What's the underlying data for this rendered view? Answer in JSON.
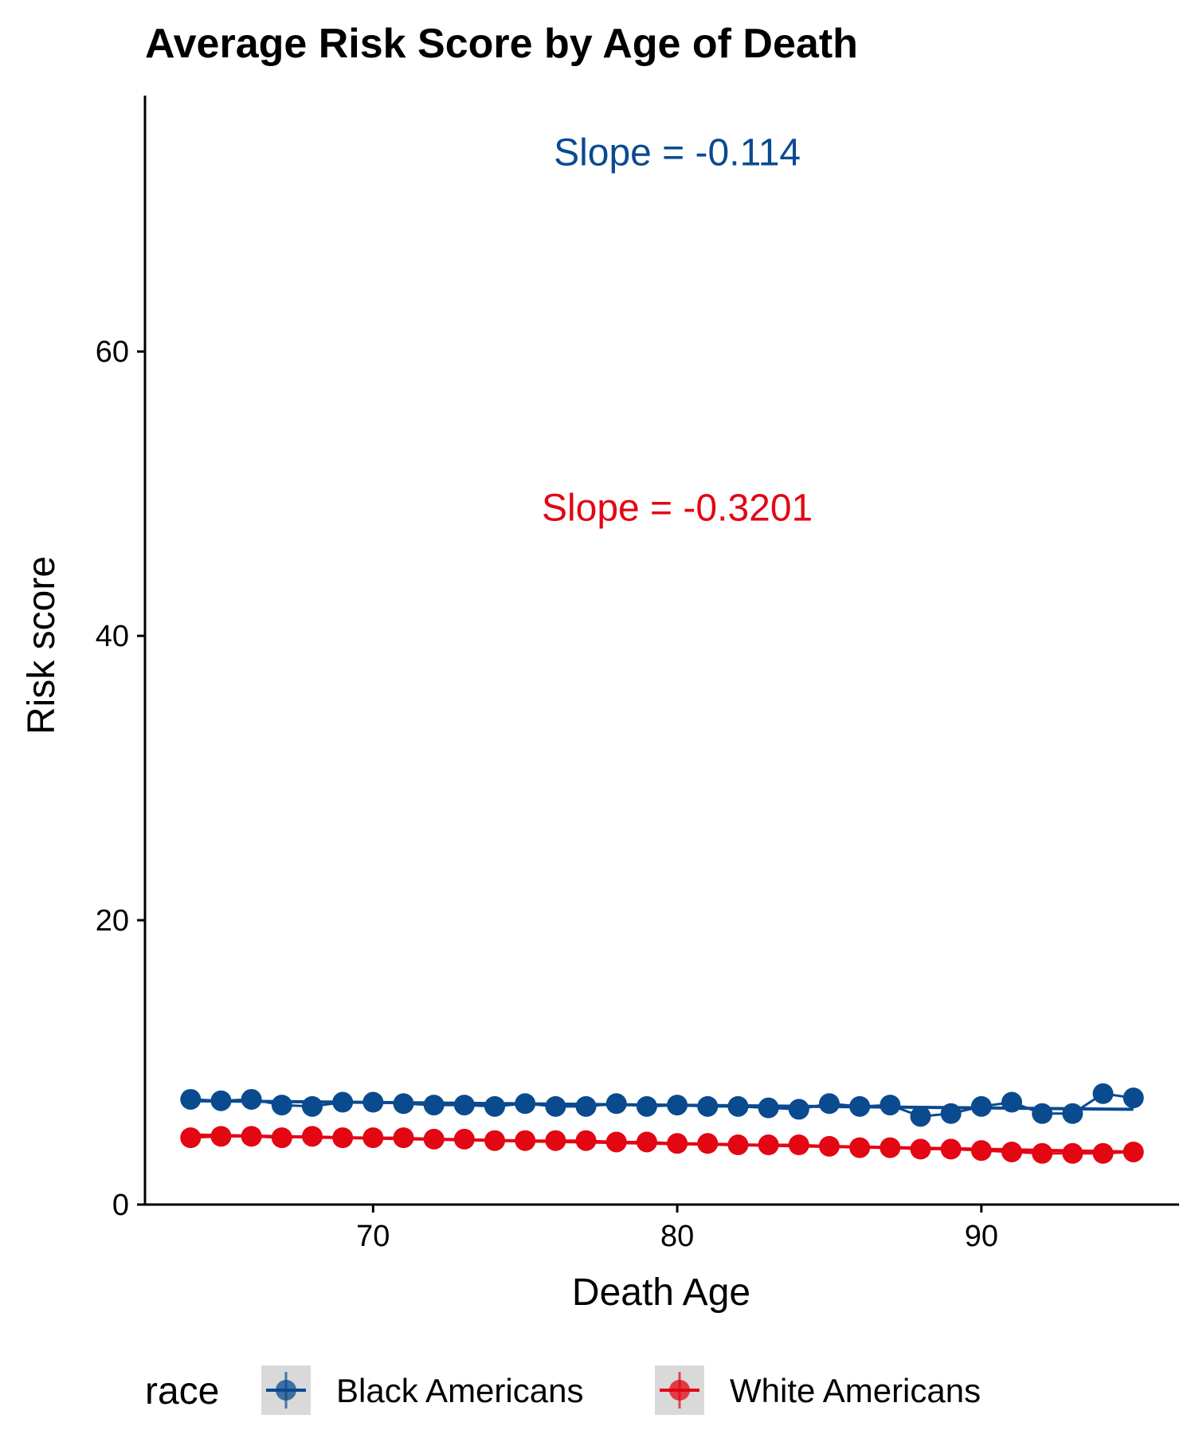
{
  "chart_data": {
    "type": "line",
    "title": "Average Risk Score by Age of Death",
    "xlabel": "Death Age",
    "ylabel": "Risk score",
    "xlim": [
      62.5,
      96.5
    ],
    "ylim": [
      0,
      78
    ],
    "xticks": [
      70,
      80,
      90
    ],
    "yticks": [
      0,
      20,
      40,
      60
    ],
    "grid": false,
    "legend": {
      "title": "race",
      "position": "bottom"
    },
    "x": [
      64,
      65,
      66,
      67,
      68,
      69,
      70,
      71,
      72,
      73,
      74,
      75,
      76,
      77,
      78,
      79,
      80,
      81,
      82,
      83,
      84,
      85,
      86,
      87,
      88,
      89,
      90,
      91,
      92,
      93,
      94,
      95
    ],
    "series": [
      {
        "name": "Black Americans",
        "color": "#0a4a8f",
        "values": [
          7.4,
          7.3,
          7.4,
          7.0,
          6.9,
          7.2,
          7.2,
          7.1,
          7.0,
          7.0,
          6.9,
          7.1,
          6.9,
          6.9,
          7.1,
          6.9,
          7.0,
          6.9,
          6.9,
          6.8,
          6.7,
          7.1,
          6.9,
          7.0,
          6.2,
          6.4,
          6.9,
          7.2,
          6.4,
          6.4,
          7.8,
          7.5
        ],
        "trend": {
          "start": [
            64,
            7.3
          ],
          "end": [
            95,
            6.7
          ]
        },
        "annotation": "Slope = -0.114"
      },
      {
        "name": "White Americans",
        "color": "#e30613",
        "values": [
          4.7,
          4.8,
          4.8,
          4.7,
          4.8,
          4.7,
          4.7,
          4.7,
          4.6,
          4.6,
          4.5,
          4.5,
          4.5,
          4.5,
          4.4,
          4.4,
          4.3,
          4.3,
          4.2,
          4.2,
          4.2,
          4.1,
          4.0,
          4.0,
          3.9,
          3.9,
          3.8,
          3.7,
          3.6,
          3.6,
          3.6,
          3.7
        ],
        "trend": {
          "start": [
            64,
            4.9
          ],
          "end": [
            95,
            3.7
          ]
        },
        "annotation": "Slope = -0.3201"
      }
    ],
    "annotations": [
      {
        "text": "Slope = -0.114",
        "x": 80,
        "y": 74,
        "series": "Black Americans"
      },
      {
        "text": "Slope = -0.3201",
        "x": 80,
        "y": 49,
        "series": "White Americans"
      }
    ]
  }
}
